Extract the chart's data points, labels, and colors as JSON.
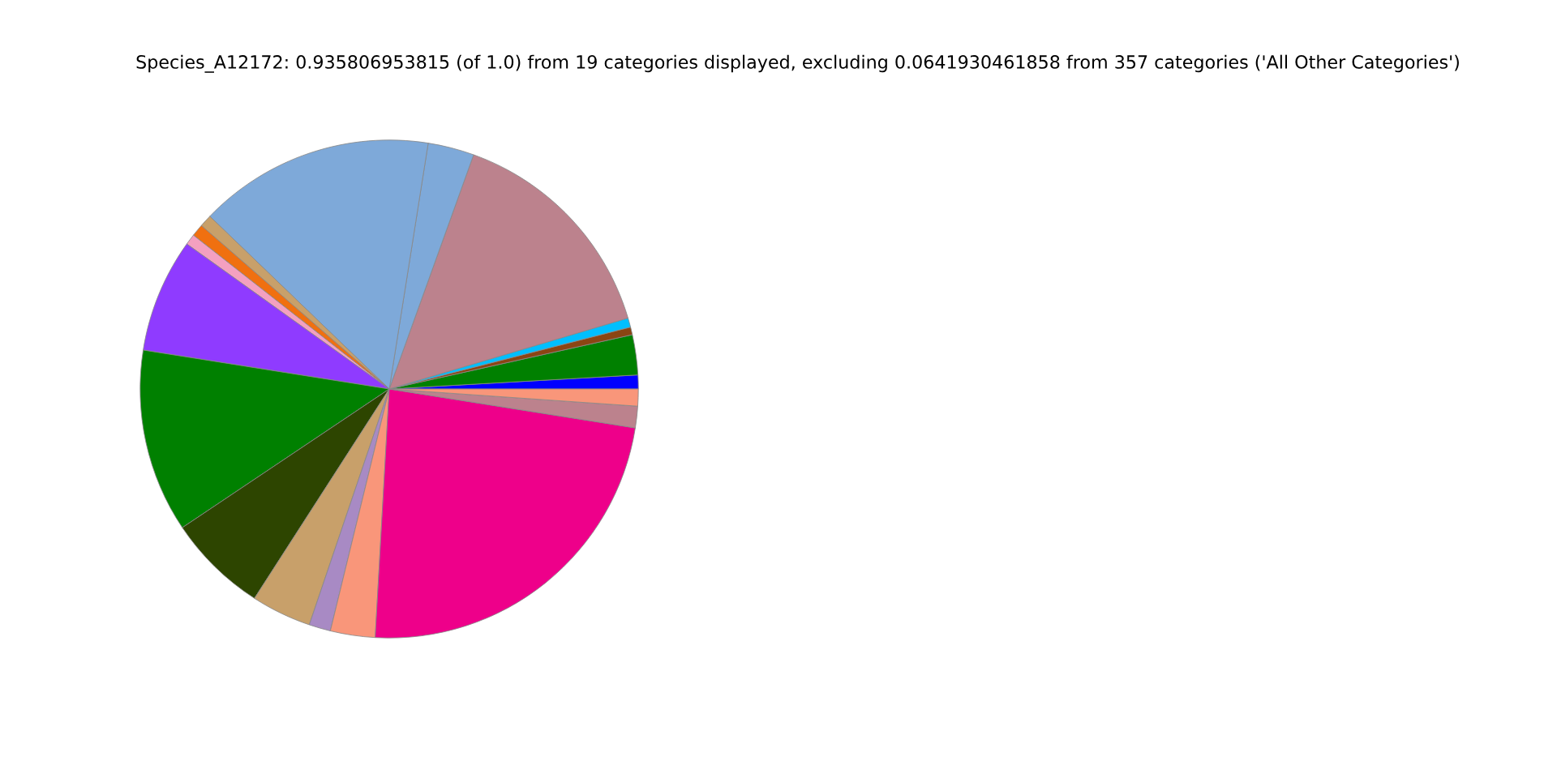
{
  "chart_data": {
    "type": "pie",
    "title": "Species_A12172: 0.935806953815 (of 1.0) from 19 categories displayed, excluding 0.0641930461858 from 357 categories ('All Other Categories')",
    "categories": [
      null,
      null,
      null,
      null,
      null,
      null,
      null,
      null,
      null,
      null,
      null,
      null,
      null,
      null,
      null,
      null,
      null,
      null,
      null
    ],
    "values": [
      0.9,
      2.6,
      0.5,
      0.6,
      14.9,
      3.0,
      15.3,
      0.8,
      0.8,
      0.7,
      7.4,
      11.9,
      6.5,
      3.9,
      1.4,
      2.9,
      23.4,
      1.4,
      1.1
    ],
    "colors": [
      "#0000ff",
      "#008000",
      "#8b4513",
      "#00bfff",
      "#bc828d",
      "#7ea9d9",
      "#7ea9d9",
      "#c8a06a",
      "#f07010",
      "#f4a0c0",
      "#8f3bff",
      "#008000",
      "#2d4500",
      "#c8a06a",
      "#a88ac4",
      "#f9967a",
      "#ee008a",
      "#bc828d",
      "#f9967a"
    ]
  }
}
